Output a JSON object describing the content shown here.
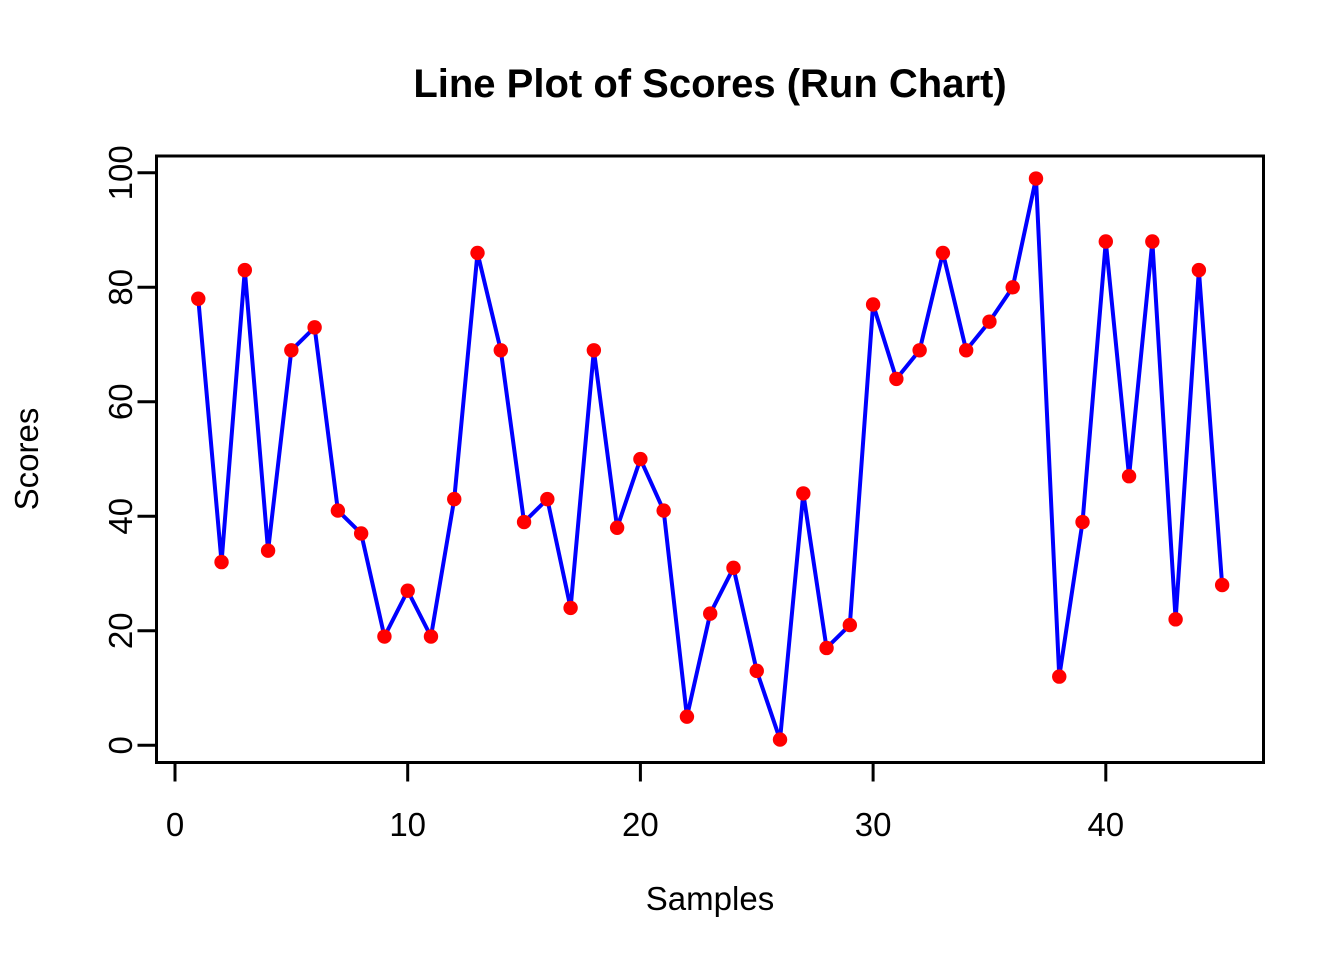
{
  "figure": {
    "background": "#FFFFFF"
  },
  "chart_data": {
    "type": "line",
    "title": "Line Plot of Scores (Run Chart)",
    "xlabel": "Samples",
    "ylabel": "Scores",
    "series": [
      {
        "name": "Scores",
        "x": [
          1,
          2,
          3,
          4,
          5,
          6,
          7,
          8,
          9,
          10,
          11,
          12,
          13,
          14,
          15,
          16,
          17,
          18,
          19,
          20,
          21,
          22,
          23,
          24,
          25,
          26,
          27,
          28,
          29,
          30,
          31,
          32,
          33,
          34,
          35,
          36,
          37,
          38,
          39,
          40,
          41,
          42,
          43,
          44,
          45
        ],
        "values": [
          78,
          32,
          83,
          34,
          69,
          73,
          41,
          37,
          19,
          27,
          19,
          43,
          86,
          69,
          39,
          43,
          24,
          69,
          38,
          50,
          41,
          5,
          23,
          31,
          13,
          1,
          44,
          17,
          21,
          77,
          64,
          69,
          86,
          69,
          74,
          80,
          99,
          12,
          39,
          88,
          47,
          88,
          22,
          83,
          28
        ]
      }
    ],
    "marker": "filled-circle",
    "line_color": "#0000FF",
    "point_color": "#FF0000",
    "box_color": "#000000",
    "xticks": [
      0,
      10,
      20,
      30,
      40
    ],
    "yticks": [
      0,
      20,
      40,
      60,
      80,
      100
    ],
    "xlim": [
      -0.76,
      46.76
    ],
    "ylim": [
      -3,
      103
    ],
    "grid": false,
    "legend": "none"
  }
}
